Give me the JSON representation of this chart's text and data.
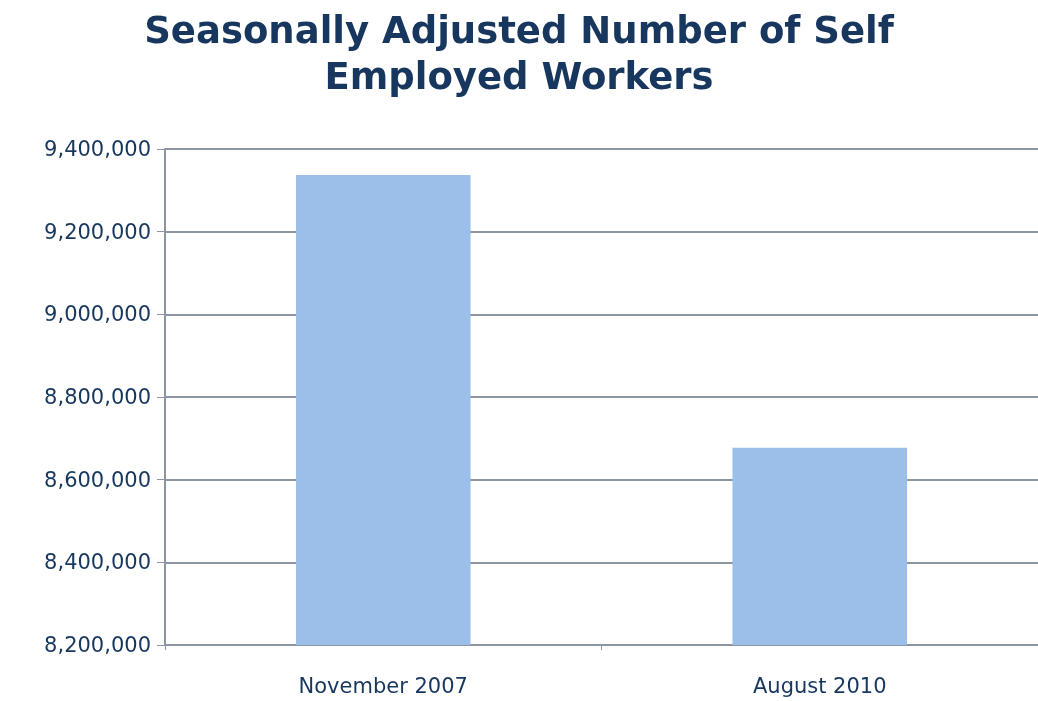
{
  "chart_data": {
    "type": "bar",
    "title": "Seasonally Adjusted Number of Self\nEmployed Workers",
    "categories": [
      "November 2007",
      "August 2010"
    ],
    "values": [
      9337000,
      8677000
    ],
    "color": "#9bbfe8",
    "ylim": [
      8200000,
      9400000
    ],
    "yticks": [
      {
        "value": 8200000,
        "label": "8,200,000"
      },
      {
        "value": 8400000,
        "label": "8,400,000"
      },
      {
        "value": 8600000,
        "label": "8,600,000"
      },
      {
        "value": 8800000,
        "label": "8,800,000"
      },
      {
        "value": 9000000,
        "label": "9,000,000"
      },
      {
        "value": 9200000,
        "label": "9,200,000"
      },
      {
        "value": 9400000,
        "label": "9,400,000"
      }
    ],
    "grid": "y"
  }
}
